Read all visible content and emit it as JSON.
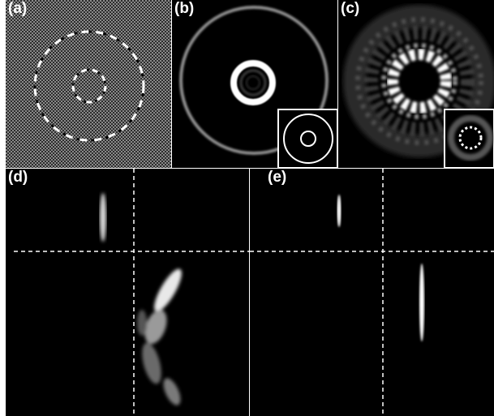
{
  "figure": {
    "panels": [
      {
        "id": "a",
        "label": "(a)",
        "content": "binary phase mask: two dashed concentric rings on checkerboard background"
      },
      {
        "id": "b",
        "label": "(b)",
        "content": "reconstructed intensity: outer faint ring and bright inner ring",
        "inset": "ideal pattern: two concentric white circles"
      },
      {
        "id": "c",
        "label": "(c)",
        "content": "speckled annular focal pattern",
        "inset": "dotted ring pattern"
      },
      {
        "id": "d",
        "label": "(d)",
        "content": "orthogonal cross-sections with aberrated, tilted focal spot"
      },
      {
        "id": "e",
        "label": "(e)",
        "content": "orthogonal cross-sections with compact, symmetric focal spot"
      }
    ],
    "colors": {
      "background": "#000000",
      "separator": "#ffffff",
      "crosshair": "#ffffff",
      "checker_light": "#8a8a8a",
      "checker_dark": "#2c2c2c"
    }
  }
}
